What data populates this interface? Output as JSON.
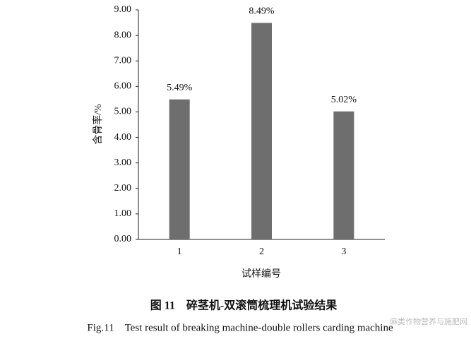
{
  "chart_data": {
    "type": "bar",
    "y_label": "含骨率/%",
    "x_label": "试样编号",
    "caption": "图 11　碎茎机-双滚筒梳理机试验结果",
    "caption_en": "Fig.11　Test result of breaking machine-double rollers carding machine",
    "watermark": "麻类作物营养与施肥网",
    "categories": [
      "1",
      "2",
      "3"
    ],
    "values": [
      5.49,
      8.49,
      5.02
    ],
    "value_labels": [
      "5.49%",
      "8.49%",
      "5.02%"
    ],
    "color": "#6e6e6e",
    "ylim": [
      0,
      9
    ],
    "yticks": [
      {
        "value": 0,
        "label": "0.00"
      },
      {
        "value": 1,
        "label": "1.00"
      },
      {
        "value": 2,
        "label": "2.00"
      },
      {
        "value": 3,
        "label": "3.00"
      },
      {
        "value": 4,
        "label": "4.00"
      },
      {
        "value": 5,
        "label": "5.00"
      },
      {
        "value": 6,
        "label": "6.00"
      },
      {
        "value": 7,
        "label": "7.00"
      },
      {
        "value": 8,
        "label": "8.00"
      },
      {
        "value": 9,
        "label": "9.00"
      }
    ],
    "grid": false
  }
}
